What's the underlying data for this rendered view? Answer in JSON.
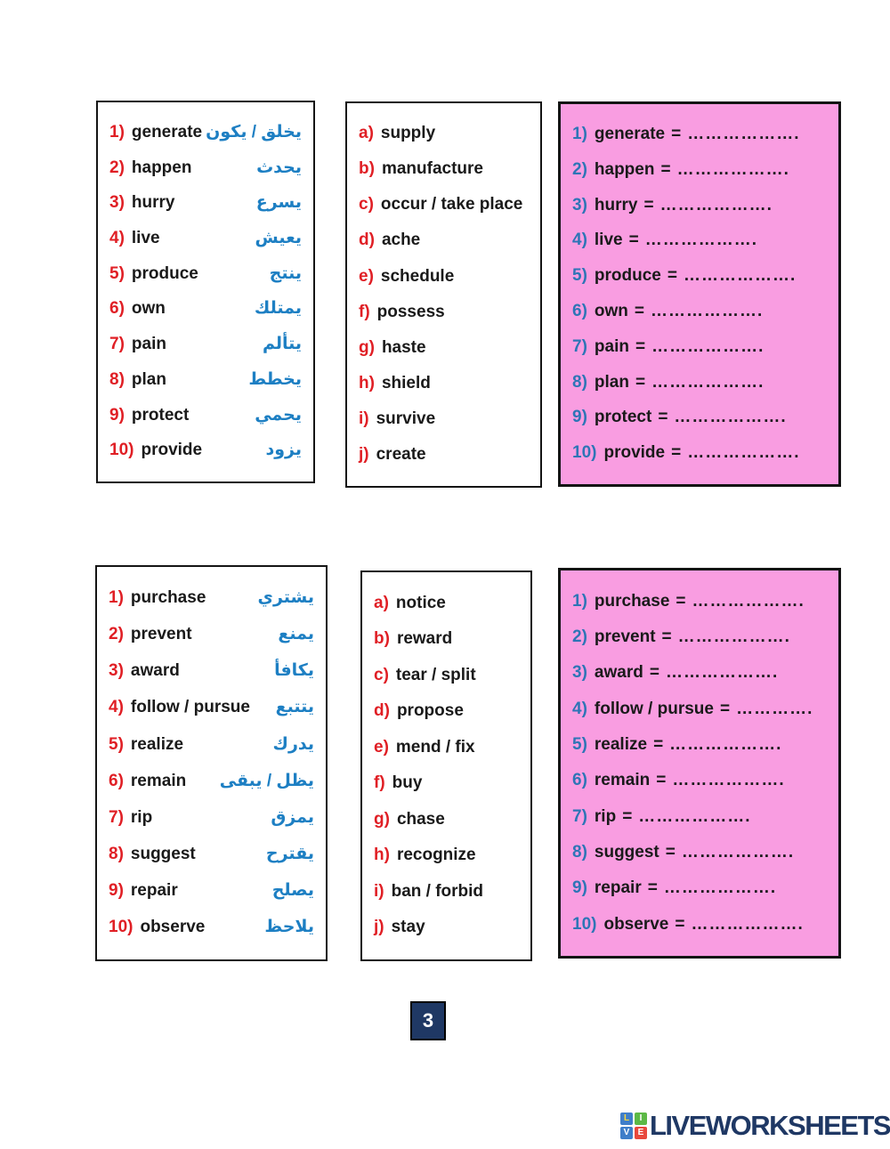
{
  "labels": {
    "eq": "="
  },
  "page_number": "3",
  "colors": {
    "number_red": "#e01f25",
    "arabic_blue": "#1d7fc3",
    "answer_number_blue": "#2e75b6",
    "pink_background": "#f99de1",
    "navy": "#1f3864",
    "text_black": "#1a1a1a"
  },
  "groups": [
    {
      "words": [
        {
          "num": "1)",
          "word": "generate",
          "arabic": "يخلق / يكون"
        },
        {
          "num": "2)",
          "word": "happen",
          "arabic": "يحدث"
        },
        {
          "num": "3)",
          "word": "hurry",
          "arabic": "يسرع"
        },
        {
          "num": "4)",
          "word": "live",
          "arabic": "يعيش"
        },
        {
          "num": "5)",
          "word": "produce",
          "arabic": "ينتج"
        },
        {
          "num": "6)",
          "word": "own",
          "arabic": "يمتلك"
        },
        {
          "num": "7)",
          "word": "pain",
          "arabic": "يتألم"
        },
        {
          "num": "8)",
          "word": "plan",
          "arabic": "يخطط"
        },
        {
          "num": "9)",
          "word": "protect",
          "arabic": "يحمي"
        },
        {
          "num": "10)",
          "word": "provide",
          "arabic": "يزود"
        }
      ],
      "options": [
        {
          "letter": "a)",
          "word": "supply"
        },
        {
          "letter": "b)",
          "word": "manufacture"
        },
        {
          "letter": "c)",
          "word": "occur / take place"
        },
        {
          "letter": "d)",
          "word": "ache"
        },
        {
          "letter": "e)",
          "word": "schedule"
        },
        {
          "letter": "f)",
          "word": "possess"
        },
        {
          "letter": "g)",
          "word": "haste"
        },
        {
          "letter": "h)",
          "word": "shield"
        },
        {
          "letter": "i)",
          "word": "survive"
        },
        {
          "letter": "j)",
          "word": "create"
        }
      ],
      "answers": [
        {
          "num": "1)",
          "word": "generate",
          "dots": "………………."
        },
        {
          "num": "2)",
          "word": "happen",
          "dots": "………………."
        },
        {
          "num": "3)",
          "word": "hurry",
          "dots": "………………."
        },
        {
          "num": "4)",
          "word": "live",
          "dots": "………………."
        },
        {
          "num": "5)",
          "word": "produce",
          "dots": "………………."
        },
        {
          "num": "6)",
          "word": "own",
          "dots": "………………."
        },
        {
          "num": "7)",
          "word": "pain",
          "dots": "………………."
        },
        {
          "num": "8)",
          "word": "plan",
          "dots": "………………."
        },
        {
          "num": "9)",
          "word": "protect",
          "dots": "………………."
        },
        {
          "num": "10)",
          "word": "provide",
          "dots": "………………."
        }
      ]
    },
    {
      "words": [
        {
          "num": "1)",
          "word": "purchase",
          "arabic": "يشتري"
        },
        {
          "num": "2)",
          "word": "prevent",
          "arabic": "يمنع"
        },
        {
          "num": "3)",
          "word": "award",
          "arabic": "يكافأ"
        },
        {
          "num": "4)",
          "word": "follow / pursue",
          "arabic": "يتتبع"
        },
        {
          "num": "5)",
          "word": "realize",
          "arabic": "يدرك"
        },
        {
          "num": "6)",
          "word": "remain",
          "arabic": "يظل / يبقى"
        },
        {
          "num": "7)",
          "word": "rip",
          "arabic": "يمزق"
        },
        {
          "num": "8)",
          "word": "suggest",
          "arabic": "يقترح"
        },
        {
          "num": "9)",
          "word": "repair",
          "arabic": "يصلح"
        },
        {
          "num": "10)",
          "word": "observe",
          "arabic": "يلاحظ"
        }
      ],
      "options": [
        {
          "letter": "a)",
          "word": "notice"
        },
        {
          "letter": "b)",
          "word": "reward"
        },
        {
          "letter": "c)",
          "word": "tear / split"
        },
        {
          "letter": "d)",
          "word": "propose"
        },
        {
          "letter": "e)",
          "word": "mend / fix"
        },
        {
          "letter": "f)",
          "word": "buy"
        },
        {
          "letter": "g)",
          "word": "chase"
        },
        {
          "letter": "h)",
          "word": "recognize"
        },
        {
          "letter": "i)",
          "word": "ban / forbid"
        },
        {
          "letter": "j)",
          "word": "stay"
        }
      ],
      "answers": [
        {
          "num": "1)",
          "word": "purchase",
          "dots": "………………."
        },
        {
          "num": "2)",
          "word": "prevent",
          "dots": "………………."
        },
        {
          "num": "3)",
          "word": "award",
          "dots": "………………."
        },
        {
          "num": "4)",
          "word": "follow / pursue",
          "dots": "…………."
        },
        {
          "num": "5)",
          "word": "realize",
          "dots": "………………."
        },
        {
          "num": "6)",
          "word": "remain",
          "dots": "………………."
        },
        {
          "num": "7)",
          "word": "rip",
          "dots": "………………."
        },
        {
          "num": "8)",
          "word": "suggest",
          "dots": "………………."
        },
        {
          "num": "9)",
          "word": "repair",
          "dots": "………………."
        },
        {
          "num": "10)",
          "word": "observe",
          "dots": "………………."
        }
      ]
    }
  ],
  "footer": {
    "logo_text": "LIVEWORKSHEETS",
    "logo_tiles": [
      {
        "letter": "L",
        "bg": "#3f7ec9",
        "fg": "#f7d63f"
      },
      {
        "letter": "I",
        "bg": "#5cb946",
        "fg": "#ffffff"
      },
      {
        "letter": "V",
        "bg": "#3f7ec9",
        "fg": "#ffffff"
      },
      {
        "letter": "E",
        "bg": "#e8483c",
        "fg": "#ffffff"
      }
    ]
  }
}
